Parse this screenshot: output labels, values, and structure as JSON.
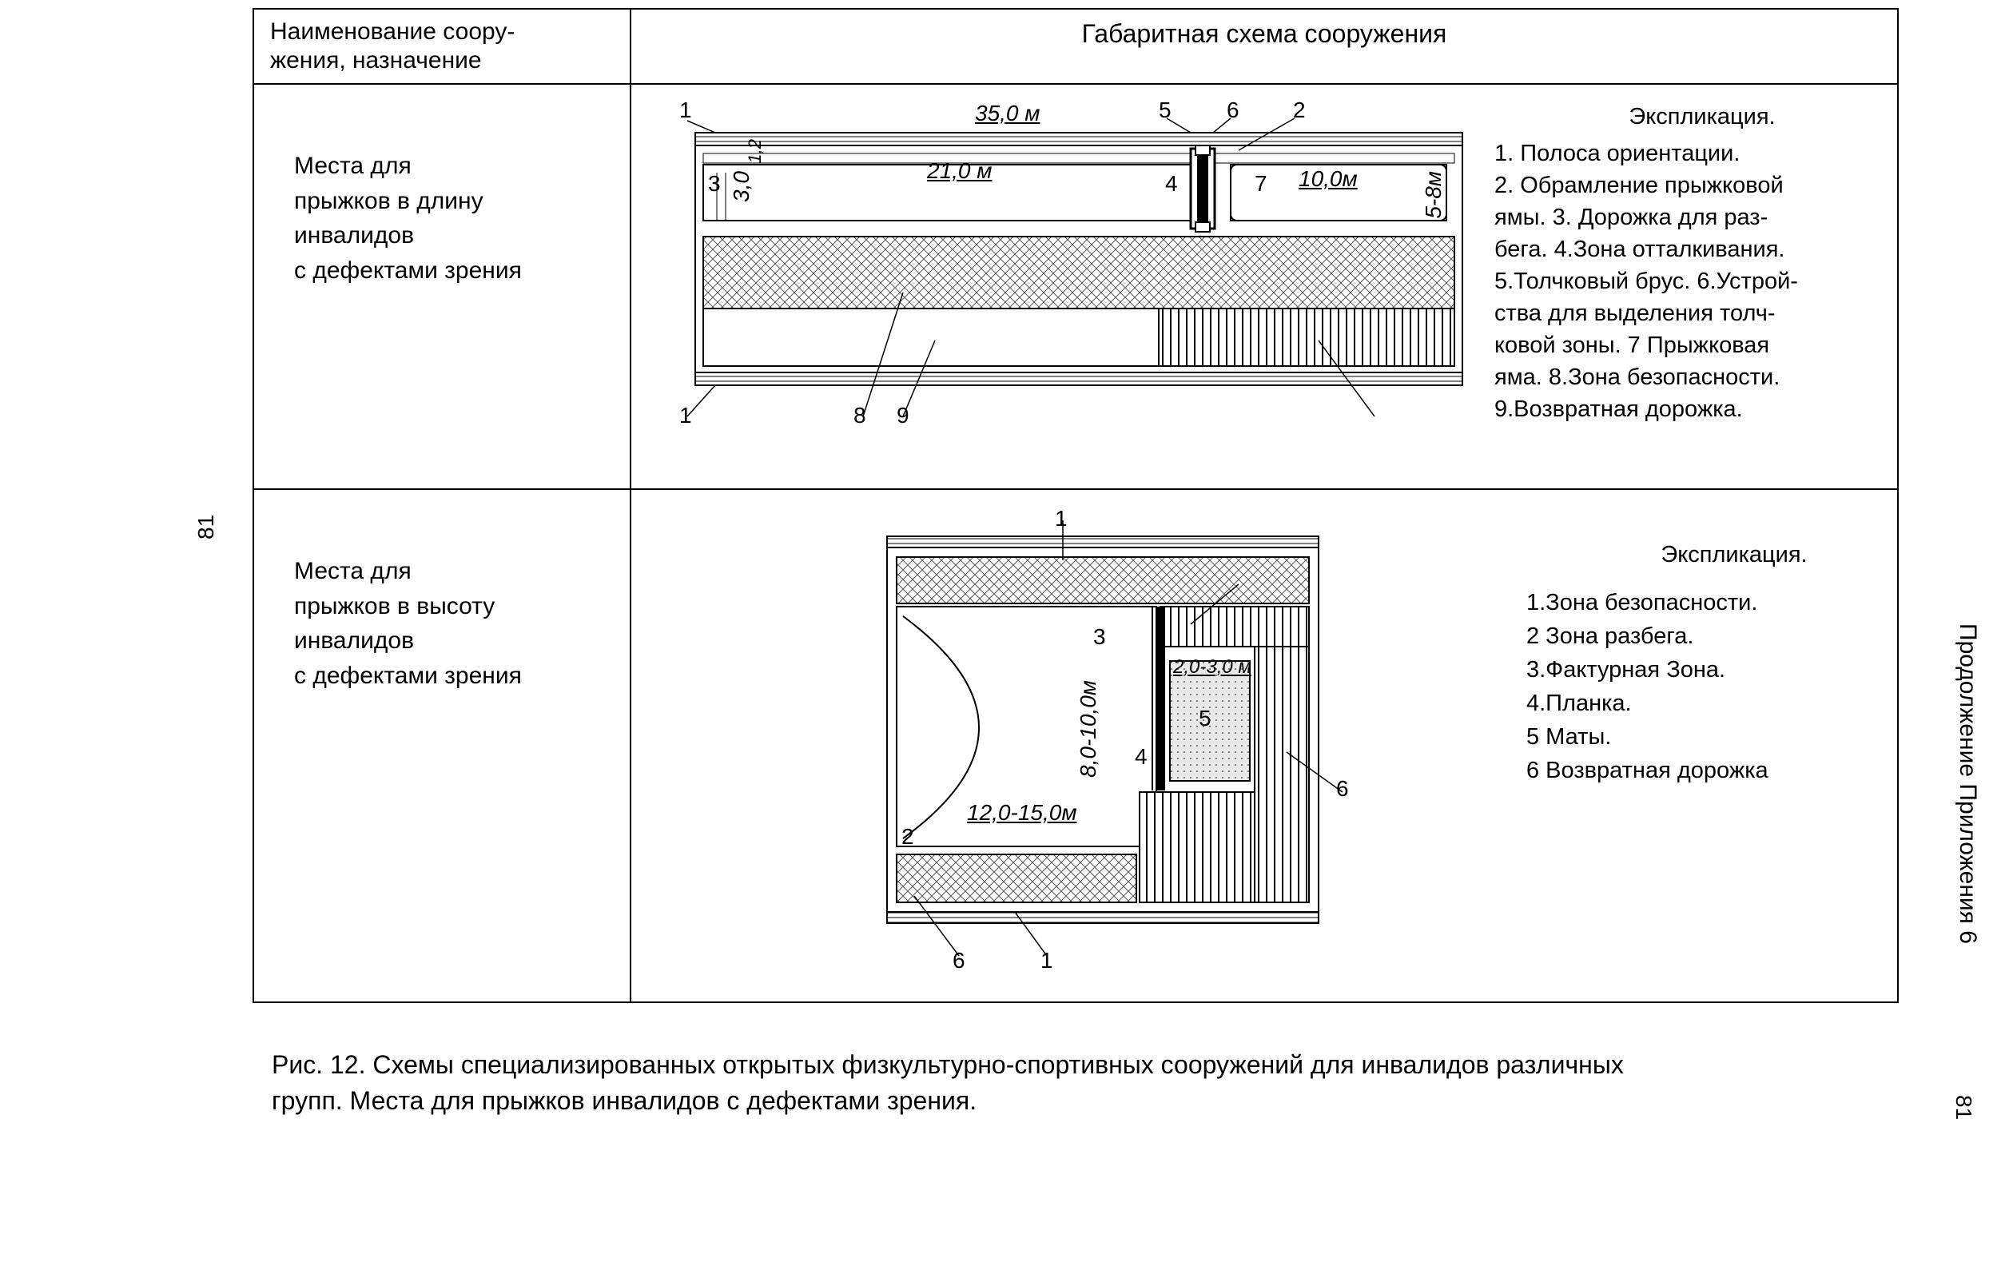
{
  "page_number_left": "81",
  "side_text_right": "Продолжение Приложения 6",
  "page_number_right": "81",
  "headers": {
    "left": "Наименование соору-\nжения, назначение",
    "right": "Габаритная схема сооружения"
  },
  "row1": {
    "name": "Места для\nпрыжков в  длину\nинвалидов\nс дефектами зрения",
    "legend_title": "Экспликация.",
    "legend_text": "1. Полоса ориентации.\n2. Обрамление прыжковой\nямы. 3. Дорожка для раз-\nбега. 4.Зона отталкивания.\n5.Толчковый брус. 6.Устрой-\nства для выделения толч-\nковой зоны. 7 Прыжковая\nяма. 8.Зона безопасности.\n9.Возвратная дорожка.",
    "dims": {
      "total_len": "35,0 м",
      "runway_len": "21,0 м",
      "pit_len": "10,0м",
      "height": "3,0",
      "small": "1,2",
      "pit_w": "5-8м"
    },
    "nums": [
      "1",
      "2",
      "3",
      "4",
      "5",
      "6",
      "7",
      "8",
      "9"
    ]
  },
  "row2": {
    "name": "Места для\nпрыжков в высоту\nинвалидов\nс дефектами зрения",
    "legend_title": "Экспликация.",
    "legend_text": "1.Зона безопасности.\n2 Зона  разбега.\n3.Фактурная Зона.\n4.Планка.\n5 Маты.\n6 Возвратная дорожка",
    "dims": {
      "width": "12,0-15,0м",
      "height": "8,0-10,0м",
      "mat": "2,0-3,0 м"
    },
    "nums": [
      "1",
      "2",
      "3",
      "4",
      "5",
      "6"
    ]
  },
  "caption": "Рис. 12. Схемы специализированных открытых физкультурно-спортивных сооружений для инвалидов различных групп.  Места для прыжков инвалидов  с дефектами зрения.",
  "colors": {
    "line": "#000000",
    "cross_fill": "#bdbdbd",
    "dot_fill": "#cccccc",
    "bg": "#ffffff"
  }
}
